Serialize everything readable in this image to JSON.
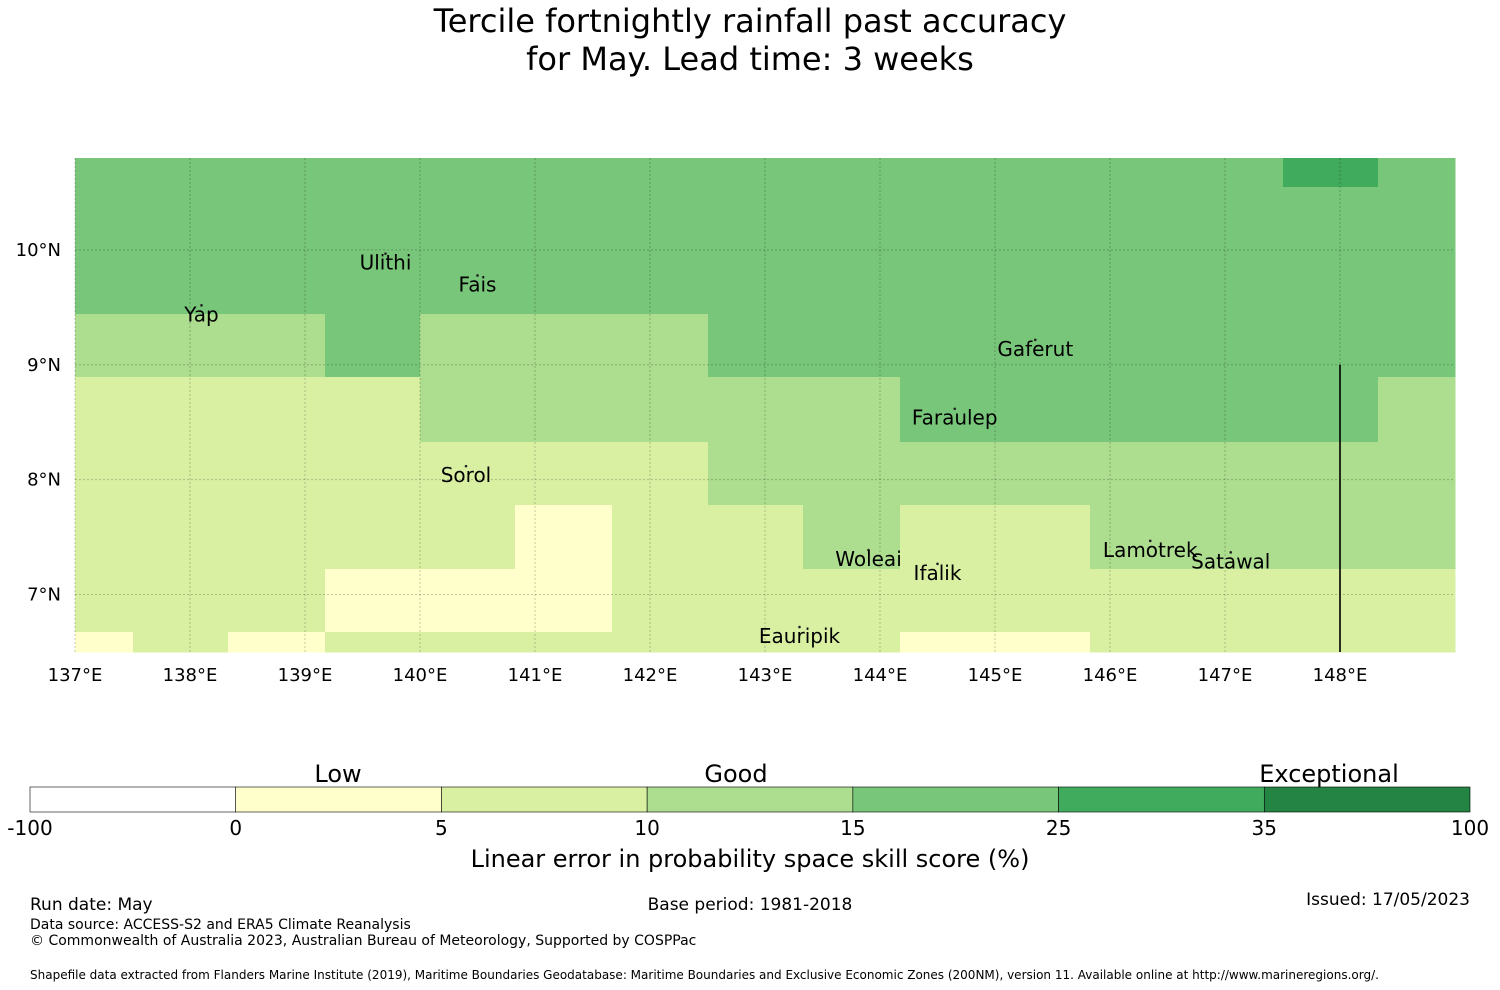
{
  "title_lines": [
    "Tercile fortnightly rainfall past accuracy",
    "for May. Lead time: 3 weeks"
  ],
  "map": {
    "lon_range": [
      137.0,
      149.0
    ],
    "lat_range": [
      6.5,
      10.8
    ],
    "x_tick_labels": [
      {
        "value": 137,
        "label": "137°E"
      },
      {
        "value": 138,
        "label": "138°E"
      },
      {
        "value": 139,
        "label": "139°E"
      },
      {
        "value": 140,
        "label": "140°E"
      },
      {
        "value": 141,
        "label": "141°E"
      },
      {
        "value": 142,
        "label": "142°E"
      },
      {
        "value": 143,
        "label": "143°E"
      },
      {
        "value": 144,
        "label": "144°E"
      },
      {
        "value": 145,
        "label": "145°E"
      },
      {
        "value": 146,
        "label": "146°E"
      },
      {
        "value": 147,
        "label": "147°E"
      },
      {
        "value": 148,
        "label": "148°E"
      }
    ],
    "y_tick_labels": [
      {
        "value": 10,
        "label": "10°N"
      },
      {
        "value": 9,
        "label": "9°N"
      },
      {
        "value": 8,
        "label": "8°N"
      },
      {
        "value": 7,
        "label": "7°N"
      }
    ],
    "grid": true,
    "skill_grid": {
      "lon_edges": [
        137.0,
        137.5,
        138.33,
        139.17,
        140.0,
        140.83,
        141.67,
        142.5,
        143.33,
        144.17,
        145.0,
        145.83,
        146.67,
        147.5,
        148.33,
        149.0
      ],
      "lat_edges": [
        10.8,
        10.55,
        9.44,
        8.89,
        8.33,
        7.78,
        7.22,
        6.67,
        6.5
      ],
      "classes_by_row_from_top": [
        [
          4,
          4,
          4,
          4,
          4,
          4,
          4,
          4,
          4,
          4,
          4,
          4,
          4,
          5,
          4
        ],
        [
          4,
          4,
          4,
          4,
          4,
          4,
          4,
          4,
          4,
          4,
          4,
          4,
          4,
          4,
          4
        ],
        [
          3,
          3,
          3,
          4,
          3,
          3,
          3,
          4,
          4,
          4,
          4,
          4,
          4,
          4,
          4
        ],
        [
          2,
          2,
          2,
          2,
          3,
          3,
          3,
          3,
          3,
          4,
          4,
          4,
          4,
          4,
          3
        ],
        [
          2,
          2,
          2,
          2,
          2,
          2,
          2,
          3,
          3,
          3,
          3,
          3,
          3,
          3,
          3
        ],
        [
          2,
          2,
          2,
          2,
          2,
          1,
          2,
          2,
          3,
          2,
          2,
          3,
          3,
          3,
          3
        ],
        [
          2,
          2,
          2,
          1,
          1,
          1,
          2,
          2,
          2,
          2,
          2,
          2,
          2,
          2,
          2
        ],
        [
          1,
          2,
          1,
          2,
          2,
          2,
          2,
          2,
          2,
          1,
          1,
          2,
          2,
          2,
          2
        ]
      ]
    },
    "boundary_line": {
      "lon": 148.0,
      "lat_from": 6.5,
      "lat_to": 9.0
    },
    "places": [
      {
        "name": "Yap",
        "lon": 138.1,
        "lat": 9.5
      },
      {
        "name": "Ulithi",
        "lon": 139.7,
        "lat": 9.95
      },
      {
        "name": "Fais",
        "lon": 140.5,
        "lat": 9.76
      },
      {
        "name": "Gaferut",
        "lon": 145.35,
        "lat": 9.2
      },
      {
        "name": "Faraulep",
        "lon": 144.65,
        "lat": 8.6
      },
      {
        "name": "Sorol",
        "lon": 140.4,
        "lat": 8.1
      },
      {
        "name": "Woleai",
        "lon": 143.9,
        "lat": 7.37
      },
      {
        "name": "Ifalik",
        "lon": 144.5,
        "lat": 7.25
      },
      {
        "name": "Lamotrek",
        "lon": 146.35,
        "lat": 7.45
      },
      {
        "name": "Satawal",
        "lon": 147.05,
        "lat": 7.35
      },
      {
        "name": "Eauripik",
        "lon": 143.3,
        "lat": 6.7
      }
    ]
  },
  "colorbar": {
    "class_colors": [
      "#ffffff",
      "#ffffcc",
      "#d9f0a3",
      "#addd8e",
      "#78c679",
      "#41ab5d",
      "#238443"
    ],
    "boundaries": [
      "-100",
      "0",
      "5",
      "10",
      "15",
      "25",
      "35",
      "100"
    ],
    "category_labels": [
      "Low",
      "Good",
      "Exceptional"
    ],
    "label": "Linear error in probability space skill score (%)"
  },
  "footer": {
    "run_date": "Run date: May",
    "base_period": "Base period: 1981-2018",
    "issued": "Issued: 17/05/2023",
    "data_source": "Data source: ACCESS-S2 and ERA5 Climate Reanalysis",
    "copyright": "© Commonwealth of Australia 2023, Australian Bureau of Meteorology, Supported by COSPPac",
    "shapefile_credit": "Shapefile data extracted from Flanders Marine Institute (2019), Maritime Boundaries Geodatabase: Maritime Boundaries and Exclusive Economic Zones (200NM), version 11. Available online at http://www.marineregions.org/."
  }
}
